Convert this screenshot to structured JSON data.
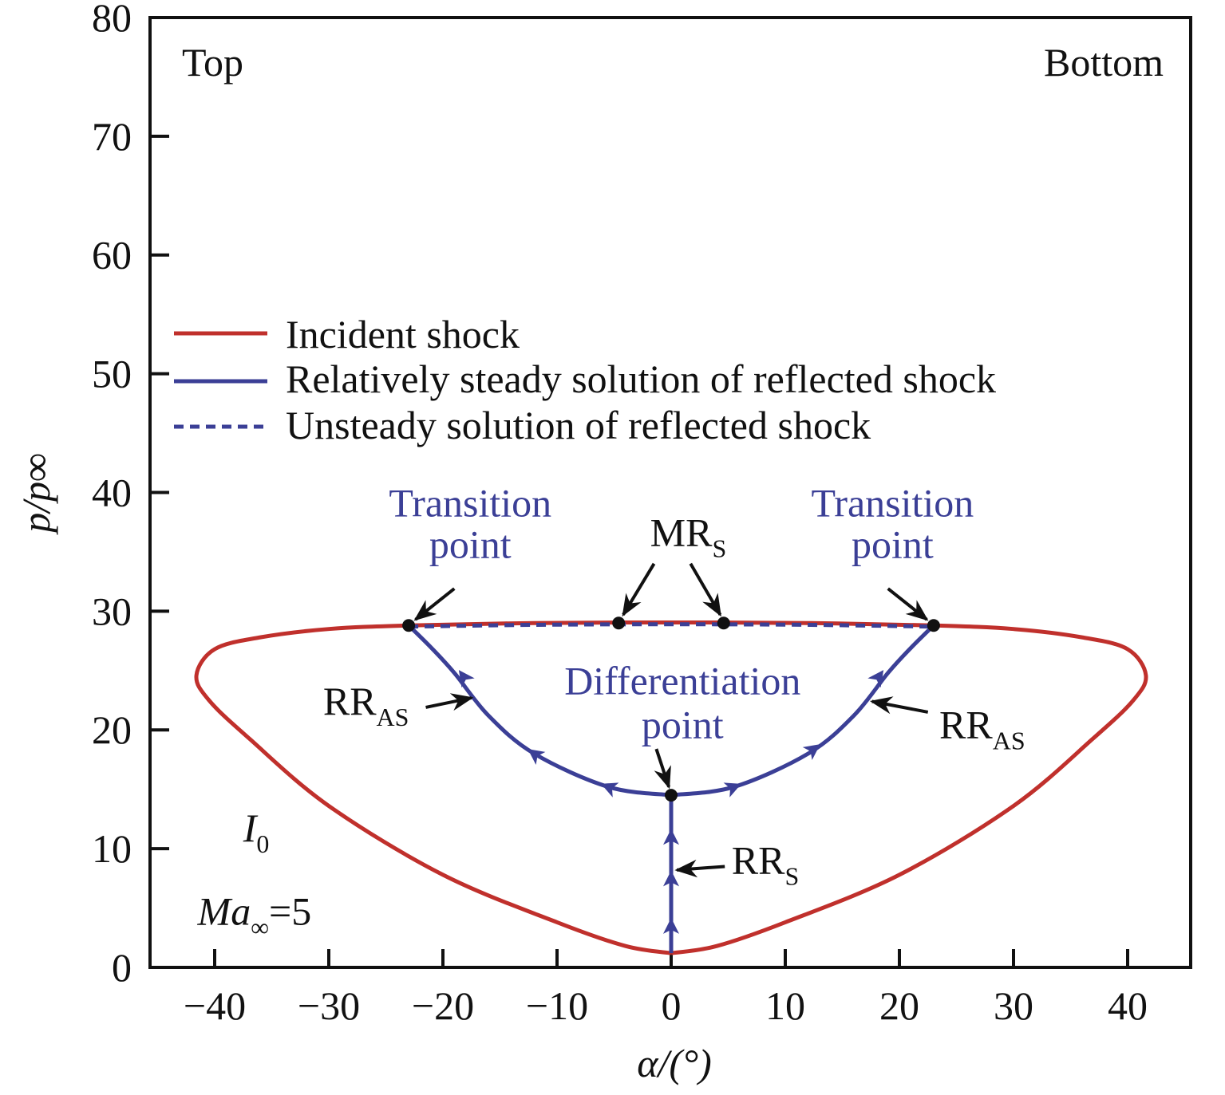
{
  "chart_data": {
    "type": "line",
    "title": "",
    "xlabel": "α/(°)",
    "ylabel": "p/p∞",
    "xlim": [
      -46,
      46
    ],
    "ylim": [
      0,
      80
    ],
    "xticks": [
      -40,
      -30,
      -20,
      -10,
      0,
      10,
      20,
      30,
      40
    ],
    "xtick_labels": [
      "−40",
      "−30",
      "−20",
      "−10",
      "0",
      "10",
      "20",
      "30",
      "40"
    ],
    "yticks": [
      0,
      10,
      20,
      30,
      40,
      50,
      60,
      70,
      80
    ],
    "ytick_labels": [
      "0",
      "10",
      "20",
      "30",
      "40",
      "50",
      "60",
      "70",
      "80"
    ],
    "corner_labels": {
      "left": "Top",
      "right": "Bottom"
    },
    "colors": {
      "incident": "#c0302c",
      "reflected": "#3b3f96"
    },
    "legend": {
      "placement": "center-left",
      "entries": [
        {
          "label": "Incident shock",
          "style": "solid",
          "color": "#c0302c"
        },
        {
          "label": "Relatively steady solution of reflected shock",
          "style": "solid",
          "color": "#3b3f96"
        },
        {
          "label": "Unsteady solution of reflected shock",
          "style": "dashed",
          "color": "#3b3f96"
        }
      ]
    },
    "series": [
      {
        "name": "Incident shock I0",
        "style": "solid",
        "color": "#c0302c",
        "x": [
          0,
          -4,
          -10,
          -20,
          -30,
          -37,
          -40.5,
          -41.6,
          -40,
          -36,
          -30,
          -23,
          -12,
          0,
          12,
          23,
          30,
          36,
          40,
          41.6,
          40.5,
          37,
          30,
          20,
          10,
          4,
          0
        ],
        "y": [
          1.2,
          1.8,
          3.8,
          7.8,
          13.6,
          19.3,
          22.5,
          24.6,
          26.8,
          27.8,
          28.5,
          28.8,
          29.0,
          29.05,
          29.0,
          28.8,
          28.5,
          27.8,
          26.8,
          24.6,
          22.5,
          19.3,
          13.6,
          7.8,
          3.8,
          1.8,
          1.2
        ]
      },
      {
        "name": "RR_S",
        "style": "solid",
        "color": "#3b3f96",
        "x": [
          0,
          0
        ],
        "y": [
          1.2,
          14.5
        ]
      },
      {
        "name": "RR_AS left",
        "style": "solid",
        "color": "#3b3f96",
        "x": [
          0,
          -5.5,
          -12,
          -16,
          -19,
          -21,
          -23
        ],
        "y": [
          14.5,
          15.2,
          18.0,
          21.2,
          24.8,
          26.9,
          28.8
        ]
      },
      {
        "name": "RR_AS right",
        "style": "solid",
        "color": "#3b3f96",
        "x": [
          0,
          5.5,
          12,
          16,
          19,
          21,
          23
        ],
        "y": [
          14.5,
          15.2,
          18.0,
          21.2,
          24.8,
          26.9,
          28.8
        ]
      },
      {
        "name": "Unsteady solution",
        "style": "dashed",
        "color": "#3b3f96",
        "x": [
          -23,
          -12,
          0,
          12,
          23
        ],
        "y": [
          28.7,
          28.85,
          28.9,
          28.85,
          28.7
        ]
      }
    ],
    "flow_arrows": [
      {
        "x": 0,
        "y": 3.5,
        "dir": "up"
      },
      {
        "x": 0,
        "y": 7.5,
        "dir": "up"
      },
      {
        "x": 0,
        "y": 11,
        "dir": "up"
      },
      {
        "x": -5.5,
        "y": 15.2,
        "toward": [
          -7,
          15.8
        ]
      },
      {
        "x": -12,
        "y": 18.0,
        "toward": [
          -13,
          18.7
        ]
      },
      {
        "x": -18.2,
        "y": 24.5,
        "toward": [
          -18.8,
          25.3
        ]
      },
      {
        "x": 5.5,
        "y": 15.2,
        "toward": [
          7,
          15.8
        ]
      },
      {
        "x": 12.5,
        "y": 18.4,
        "toward": [
          13.5,
          19.1
        ]
      },
      {
        "x": 18.2,
        "y": 24.5,
        "toward": [
          18.8,
          25.3
        ]
      }
    ],
    "points": [
      {
        "x": -23,
        "y": 28.8
      },
      {
        "x": 23,
        "y": 28.8
      },
      {
        "x": -4.6,
        "y": 29.0
      },
      {
        "x": 4.6,
        "y": 29.0
      },
      {
        "x": 0,
        "y": 14.5
      }
    ],
    "annotations": [
      {
        "lines": [
          "Transition",
          "point"
        ],
        "x": -17.6,
        "y": [
          38.0,
          34.5
        ],
        "color": "blue",
        "arrows": [
          {
            "from": [
              -19,
              31.9
            ],
            "to": [
              -22.4,
              29.3
            ]
          }
        ]
      },
      {
        "lines": [
          "Transition",
          "point"
        ],
        "x": 19.4,
        "y": [
          38.0,
          34.5
        ],
        "color": "blue",
        "arrows": [
          {
            "from": [
              19,
              31.9
            ],
            "to": [
              22.4,
              29.3
            ]
          }
        ]
      },
      {
        "lines": [
          "Differentiation",
          "point"
        ],
        "x": 1.0,
        "y": [
          23.0,
          19.3
        ],
        "color": "blue",
        "arrows": [
          {
            "from": [
              -1.3,
              18.4
            ],
            "to": [
              -0.2,
              15.2
            ]
          }
        ]
      },
      {
        "main": "MR",
        "sub": "S",
        "x": 1.5,
        "y": 35.5,
        "arrows": [
          {
            "from": [
              -1.5,
              34.0
            ],
            "to": [
              -4.2,
              29.7
            ]
          },
          {
            "from": [
              1.7,
              34.0
            ],
            "to": [
              4.3,
              29.7
            ]
          }
        ]
      },
      {
        "main": "RR",
        "sub": "AS",
        "x": -30.5,
        "y": 21.3,
        "anchor": "start",
        "arrows": [
          {
            "from": [
              -21.5,
              21.9
            ],
            "to": [
              -17.5,
              22.7
            ]
          }
        ]
      },
      {
        "main": "RR",
        "sub": "AS",
        "x": 23.5,
        "y": 19.3,
        "anchor": "start",
        "arrows": [
          {
            "from": [
              22.5,
              21.5
            ],
            "to": [
              17.6,
              22.4
            ]
          }
        ]
      },
      {
        "main": "RR",
        "sub": "S",
        "x": 5.3,
        "y": 7.9,
        "anchor": "start",
        "arrows": [
          {
            "from": [
              4.7,
              8.5
            ],
            "to": [
              0.5,
              8.2
            ]
          }
        ]
      }
    ],
    "curve_label": {
      "main": "I",
      "sub": "0",
      "x": -37.5,
      "y": 10.6
    },
    "condition_label": {
      "main": "Ma",
      "sub": "∞",
      "suffix": "=5",
      "x": -41.5,
      "y": 3.6
    }
  }
}
